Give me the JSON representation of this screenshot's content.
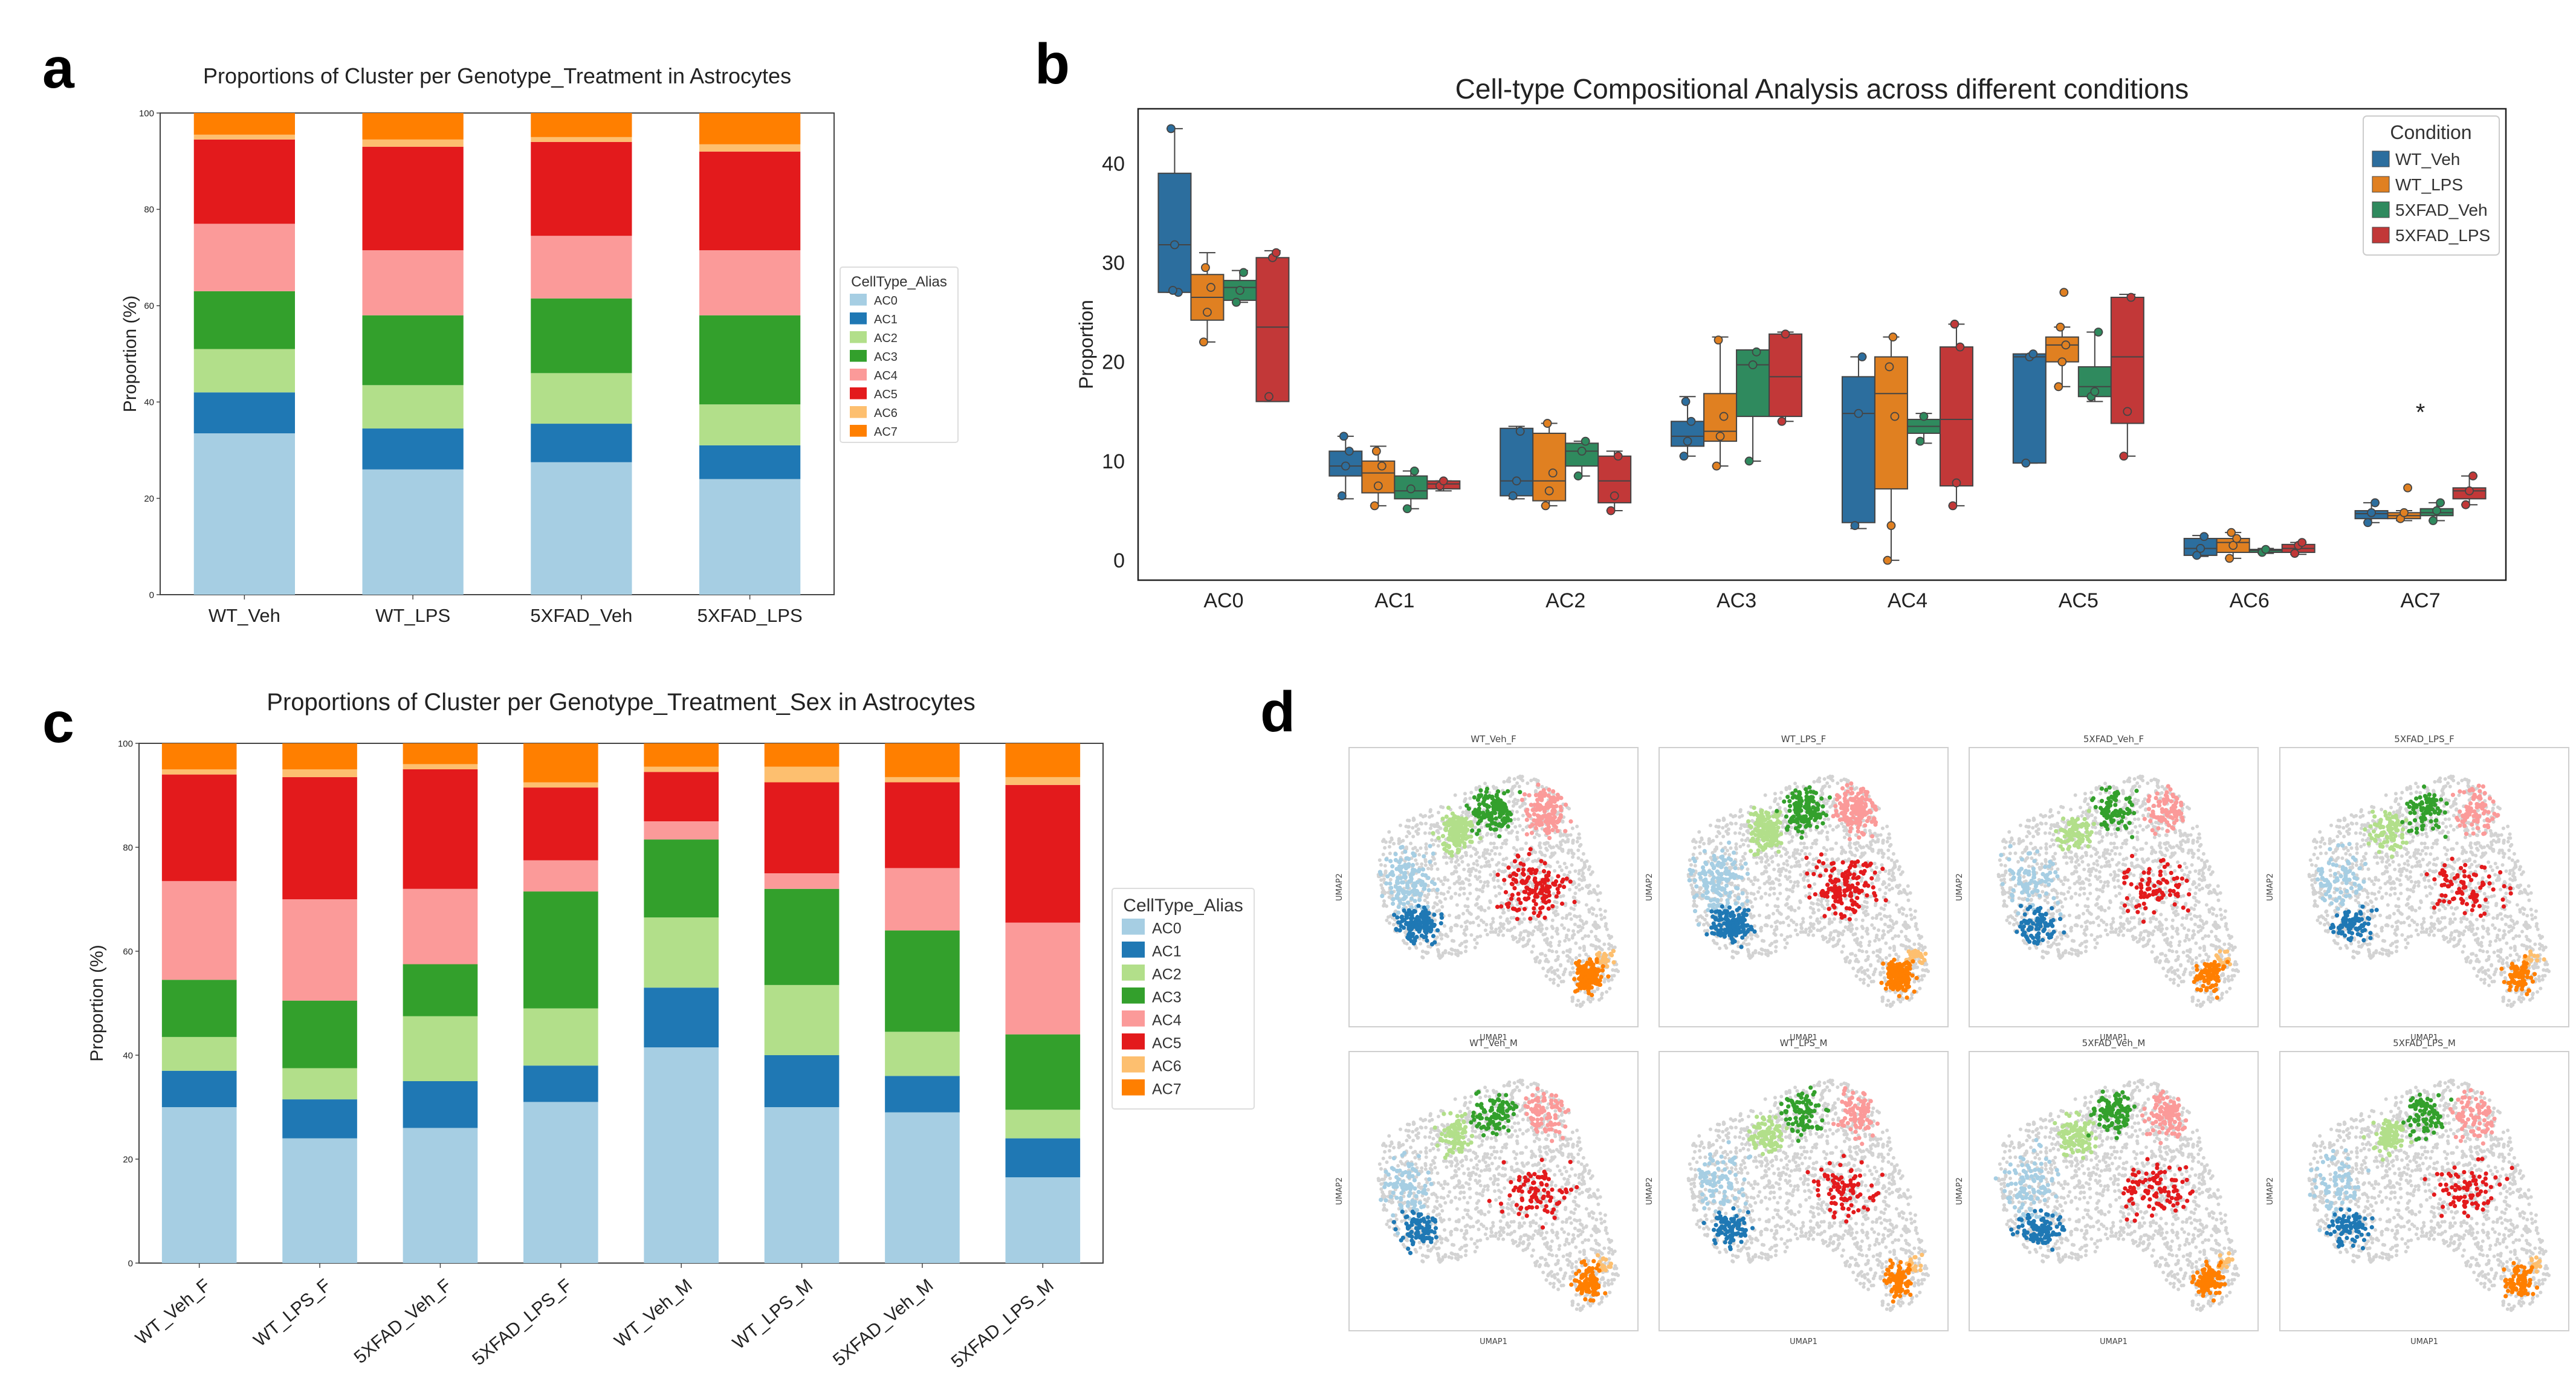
{
  "colors": {
    "AC0": "#a6cee3",
    "AC1": "#1f78b4",
    "AC2": "#b2df8a",
    "AC3": "#33a02c",
    "AC4": "#fb9a99",
    "AC5": "#e31a1c",
    "AC6": "#fdbf6f",
    "AC7": "#ff7f00",
    "grey": "#d3d3d3",
    "WT_Veh": "#2c6e9e",
    "WT_LPS": "#e08021",
    "5XFAD_Veh": "#2f8a5e",
    "5XFAD_LPS": "#c23838"
  },
  "panels": {
    "a": {
      "letter": "a"
    },
    "b": {
      "letter": "b"
    },
    "c": {
      "letter": "c"
    },
    "d": {
      "letter": "d"
    }
  },
  "chart_data": [
    {
      "id": "a",
      "type": "bar",
      "stacked": true,
      "title": "Proportions of Cluster per Genotype_Treatment in Astrocytes",
      "ylabel": "Proportion (%)",
      "ylim": [
        0,
        100
      ],
      "yticks": [
        "0",
        "20",
        "40",
        "60",
        "80",
        "100"
      ],
      "categories": [
        "WT_Veh",
        "WT_LPS",
        "5XFAD_Veh",
        "5XFAD_LPS"
      ],
      "legend_title": "CellType_Alias",
      "series": [
        {
          "name": "AC0",
          "values": [
            33.5,
            26,
            27.5,
            24
          ]
        },
        {
          "name": "AC1",
          "values": [
            8.5,
            8.5,
            8,
            7
          ]
        },
        {
          "name": "AC2",
          "values": [
            9,
            9,
            10.5,
            8.5
          ]
        },
        {
          "name": "AC3",
          "values": [
            12,
            14.5,
            15.5,
            18.5
          ]
        },
        {
          "name": "AC4",
          "values": [
            14,
            13.5,
            13,
            13.5
          ]
        },
        {
          "name": "AC5",
          "values": [
            17.5,
            21.5,
            19.5,
            20.5
          ]
        },
        {
          "name": "AC6",
          "values": [
            1,
            1.5,
            1,
            1.5
          ]
        },
        {
          "name": "AC7",
          "values": [
            4.5,
            5.5,
            5,
            6.5
          ]
        }
      ]
    },
    {
      "id": "b",
      "type": "box",
      "title": "Cell-type Compositional Analysis across different conditions",
      "ylabel": "Proportion",
      "ylim": [
        -2,
        45.5
      ],
      "yticks": [
        "0",
        "10",
        "20",
        "30",
        "40"
      ],
      "categories": [
        "AC0",
        "AC1",
        "AC2",
        "AC3",
        "AC4",
        "AC5",
        "AC6",
        "AC7"
      ],
      "legend_title": "Condition",
      "conditions": [
        "WT_Veh",
        "WT_LPS",
        "5XFAD_Veh",
        "5XFAD_LPS"
      ],
      "annotation": {
        "text": "*",
        "category": "AC7",
        "y": 15.2
      },
      "boxes": {
        "AC0": [
          {
            "q1": 27,
            "med": 31.8,
            "q3": 39,
            "wlo": 27,
            "whi": 43.5,
            "pts": [
              43.5,
              31.8,
              27,
              27.2
            ]
          },
          {
            "q1": 24.2,
            "med": 26.5,
            "q3": 28.8,
            "wlo": 22,
            "whi": 31,
            "pts": [
              22,
              25,
              27.5,
              29.5
            ]
          },
          {
            "q1": 26.2,
            "med": 27.5,
            "q3": 28.2,
            "wlo": 26,
            "whi": 29.2,
            "pts": [
              26,
              27.2,
              29
            ]
          },
          {
            "q1": 16,
            "med": 23.5,
            "q3": 30.5,
            "wlo": 16,
            "whi": 31.2,
            "pts": [
              16.5,
              30.5,
              31
            ]
          }
        ],
        "AC1": [
          {
            "q1": 8.5,
            "med": 9.5,
            "q3": 11,
            "wlo": 6.2,
            "whi": 12.5,
            "pts": [
              6.5,
              9.5,
              11,
              12.5
            ]
          },
          {
            "q1": 6.8,
            "med": 8.8,
            "q3": 10,
            "wlo": 5.5,
            "whi": 11.5,
            "pts": [
              5.5,
              7.5,
              9.5,
              11
            ]
          },
          {
            "q1": 6.2,
            "med": 7,
            "q3": 8.5,
            "wlo": 5.2,
            "whi": 9,
            "pts": [
              5.2,
              7.2,
              9
            ]
          },
          {
            "q1": 7.2,
            "med": 7.7,
            "q3": 8,
            "wlo": 7,
            "whi": 8,
            "pts": [
              7.5,
              8
            ]
          }
        ],
        "AC2": [
          {
            "q1": 6.5,
            "med": 8,
            "q3": 13.3,
            "wlo": 6.2,
            "whi": 13.5,
            "pts": [
              6.5,
              8,
              13
            ]
          },
          {
            "q1": 6,
            "med": 8,
            "q3": 12.8,
            "wlo": 5.5,
            "whi": 13.8,
            "pts": [
              5.5,
              7,
              8.8,
              13.8
            ]
          },
          {
            "q1": 9.5,
            "med": 11,
            "q3": 11.8,
            "wlo": 8.5,
            "whi": 12,
            "pts": [
              8.5,
              11,
              12
            ]
          },
          {
            "q1": 5.8,
            "med": 8,
            "q3": 10.5,
            "wlo": 5,
            "whi": 11,
            "pts": [
              5,
              6.5,
              10.5
            ]
          }
        ],
        "AC3": [
          {
            "q1": 11.5,
            "med": 12.5,
            "q3": 14,
            "wlo": 10.5,
            "whi": 16.5,
            "pts": [
              10.5,
              12,
              14,
              16
            ]
          },
          {
            "q1": 12,
            "med": 13,
            "q3": 16.8,
            "wlo": 9.5,
            "whi": 22.5,
            "pts": [
              9.5,
              12.5,
              14.5,
              22.2
            ]
          },
          {
            "q1": 14.5,
            "med": 19.7,
            "q3": 21.2,
            "wlo": 10,
            "whi": 21.2,
            "pts": [
              10,
              19.7,
              21
            ]
          },
          {
            "q1": 14.5,
            "med": 18.5,
            "q3": 22.8,
            "wlo": 14,
            "whi": 23,
            "pts": [
              14,
              22.8
            ]
          }
        ],
        "AC4": [
          {
            "q1": 3.8,
            "med": 14.8,
            "q3": 18.5,
            "wlo": 3.2,
            "whi": 20.5,
            "pts": [
              3.5,
              14.8,
              20.5
            ]
          },
          {
            "q1": 7.2,
            "med": 16.8,
            "q3": 20.5,
            "wlo": 0,
            "whi": 22.5,
            "pts": [
              0,
              3.5,
              14.5,
              19.5,
              22.5
            ]
          },
          {
            "q1": 12.8,
            "med": 13.5,
            "q3": 14.2,
            "wlo": 11.8,
            "whi": 14.8,
            "pts": [
              12,
              14.5
            ]
          },
          {
            "q1": 7.5,
            "med": 14.2,
            "q3": 21.5,
            "wlo": 5.5,
            "whi": 23.8,
            "pts": [
              5.5,
              7.8,
              21.5,
              23.8
            ]
          }
        ],
        "AC5": [
          {
            "q1": 9.8,
            "med": 20.5,
            "q3": 20.8,
            "wlo": 9.8,
            "whi": 20.8,
            "pts": [
              9.8,
              20.5,
              20.8
            ]
          },
          {
            "q1": 20,
            "med": 21.7,
            "q3": 22.5,
            "wlo": 17.5,
            "whi": 23.5,
            "pts": [
              17.5,
              20,
              21.7,
              23.5,
              27
            ]
          },
          {
            "q1": 16.5,
            "med": 17.5,
            "q3": 19.5,
            "wlo": 16,
            "whi": 23,
            "pts": [
              16.5,
              17,
              23
            ]
          },
          {
            "q1": 13.8,
            "med": 20.5,
            "q3": 26.5,
            "wlo": 10.5,
            "whi": 26.8,
            "pts": [
              10.5,
              15,
              26.5
            ]
          }
        ],
        "AC6": [
          {
            "q1": 0.5,
            "med": 1.2,
            "q3": 2.2,
            "wlo": 0.4,
            "whi": 2.5,
            "pts": [
              0.5,
              1.2,
              2.4
            ]
          },
          {
            "q1": 0.8,
            "med": 1.8,
            "q3": 2.2,
            "wlo": 0.2,
            "whi": 2.8,
            "pts": [
              0.2,
              1.5,
              2.2,
              2.8
            ]
          },
          {
            "q1": 0.8,
            "med": 1,
            "q3": 1.1,
            "wlo": 0.7,
            "whi": 1.2,
            "pts": [
              0.8,
              1.1
            ]
          },
          {
            "q1": 0.8,
            "med": 1.2,
            "q3": 1.6,
            "wlo": 0.6,
            "whi": 1.8,
            "pts": [
              0.7,
              1.5,
              1.8
            ]
          }
        ],
        "AC7": [
          {
            "q1": 4.2,
            "med": 4.7,
            "q3": 5,
            "wlo": 3.8,
            "whi": 5.8,
            "pts": [
              3.8,
              4.8,
              5.8
            ]
          },
          {
            "q1": 4.2,
            "med": 4.5,
            "q3": 4.8,
            "wlo": 4,
            "whi": 5,
            "pts": [
              4.2,
              4.8,
              7.3
            ]
          },
          {
            "q1": 4.5,
            "med": 4.8,
            "q3": 5.2,
            "wlo": 4,
            "whi": 5.8,
            "pts": [
              4,
              5,
              5.8
            ]
          },
          {
            "q1": 6.2,
            "med": 7,
            "q3": 7.3,
            "wlo": 5.6,
            "whi": 8.5,
            "pts": [
              5.6,
              7,
              8.5
            ]
          }
        ]
      }
    },
    {
      "id": "c",
      "type": "bar",
      "stacked": true,
      "title": "Proportions of Cluster per Genotype_Treatment_Sex in Astrocytes",
      "ylabel": "Proportion (%)",
      "ylim": [
        0,
        100
      ],
      "yticks": [
        "0",
        "20",
        "40",
        "60",
        "80",
        "100"
      ],
      "categories": [
        "WT_Veh_F",
        "WT_LPS_F",
        "5XFAD_Veh_F",
        "5XFAD_LPS_F",
        "WT_Veh_M",
        "WT_LPS_M",
        "5XFAD_Veh_M",
        "5XFAD_LPS_M"
      ],
      "legend_title": "CellType_Alias",
      "series": [
        {
          "name": "AC0",
          "values": [
            30,
            24,
            26,
            31,
            41.5,
            30,
            29,
            16.5
          ]
        },
        {
          "name": "AC1",
          "values": [
            7,
            7.5,
            9,
            7,
            11.5,
            10,
            7,
            7.5
          ]
        },
        {
          "name": "AC2",
          "values": [
            6.5,
            6,
            12.5,
            11,
            13.5,
            13.5,
            8.5,
            5.5
          ]
        },
        {
          "name": "AC3",
          "values": [
            11,
            13,
            10,
            22.5,
            15,
            18.5,
            19.5,
            14.5
          ]
        },
        {
          "name": "AC4",
          "values": [
            19,
            19.5,
            14.5,
            6,
            3.5,
            3,
            12,
            21.5
          ]
        },
        {
          "name": "AC5",
          "values": [
            20.5,
            23.5,
            23,
            14,
            9.5,
            17.5,
            16.5,
            26.5
          ]
        },
        {
          "name": "AC6",
          "values": [
            1,
            1.5,
            1,
            1,
            1,
            3,
            1,
            1.5
          ]
        },
        {
          "name": "AC7",
          "values": [
            5,
            5,
            4,
            7.5,
            4.5,
            4.5,
            6.5,
            6.5
          ]
        }
      ]
    },
    {
      "id": "d",
      "type": "scatter",
      "subplots": [
        "WT_Veh_F",
        "WT_LPS_F",
        "5XFAD_Veh_F",
        "5XFAD_LPS_F",
        "WT_Veh_M",
        "WT_LPS_M",
        "5XFAD_Veh_M",
        "5XFAD_LPS_M"
      ],
      "xlabel": "UMAP1",
      "ylabel": "UMAP2",
      "highlight_density": [
        0.95,
        1.0,
        0.55,
        0.55,
        0.6,
        0.6,
        0.7,
        0.55
      ]
    }
  ]
}
